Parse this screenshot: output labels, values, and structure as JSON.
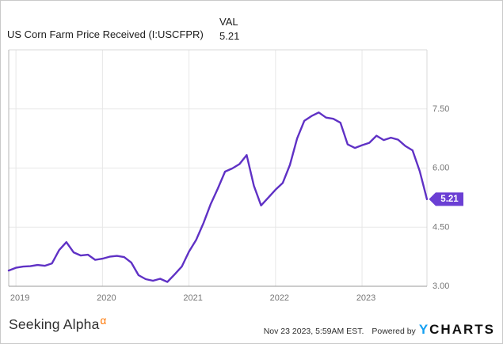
{
  "header": {
    "title": "US Corn Farm Price Received (I:USCFPR)",
    "value_label": "VAL",
    "value": "5.21"
  },
  "footer": {
    "brand": "Seeking Alpha",
    "brand_alpha": "α",
    "timestamp": "Nov 23 2023, 5:59AM EST.",
    "powered_by": "Powered by",
    "ycharts_y": "Y",
    "ycharts_rest": "CHARTS"
  },
  "colors": {
    "line": "#5f31c5",
    "badge": "#6b3fd4",
    "grid": "#e7e7e7",
    "axis_bottom": "#999999",
    "axis_left": "#b5b5b5",
    "frame_light": "#d8d8d8",
    "tick_text": "#757575",
    "alpha_orange": "#ff7500",
    "ycharts_blue": "#14a0f2"
  },
  "chart_data": {
    "type": "line",
    "title": "US Corn Farm Price Received (I:USCFPR)",
    "series_name": "US Corn Farm Price Received",
    "x": [
      "2018-12",
      "2019-01",
      "2019-02",
      "2019-03",
      "2019-04",
      "2019-05",
      "2019-06",
      "2019-07",
      "2019-08",
      "2019-09",
      "2019-10",
      "2019-11",
      "2019-12",
      "2020-01",
      "2020-02",
      "2020-03",
      "2020-04",
      "2020-05",
      "2020-06",
      "2020-07",
      "2020-08",
      "2020-09",
      "2020-10",
      "2020-11",
      "2020-12",
      "2021-01",
      "2021-02",
      "2021-03",
      "2021-04",
      "2021-05",
      "2021-06",
      "2021-07",
      "2021-08",
      "2021-09",
      "2021-10",
      "2021-11",
      "2021-12",
      "2022-01",
      "2022-02",
      "2022-03",
      "2022-04",
      "2022-05",
      "2022-06",
      "2022-07",
      "2022-08",
      "2022-09",
      "2022-10",
      "2022-11",
      "2022-12",
      "2023-01",
      "2023-02",
      "2023-03",
      "2023-04",
      "2023-05",
      "2023-06",
      "2023-07",
      "2023-08",
      "2023-09",
      "2023-10"
    ],
    "values": [
      3.4,
      3.47,
      3.5,
      3.51,
      3.54,
      3.52,
      3.58,
      3.92,
      4.12,
      3.86,
      3.78,
      3.8,
      3.67,
      3.7,
      3.75,
      3.77,
      3.74,
      3.6,
      3.28,
      3.18,
      3.14,
      3.19,
      3.11,
      3.3,
      3.5,
      3.88,
      4.18,
      4.6,
      5.08,
      5.48,
      5.91,
      5.99,
      6.1,
      6.33,
      5.55,
      5.05,
      5.25,
      5.45,
      5.62,
      6.08,
      6.75,
      7.2,
      7.32,
      7.41,
      7.28,
      7.25,
      7.15,
      6.6,
      6.51,
      6.58,
      6.64,
      6.82,
      6.71,
      6.77,
      6.72,
      6.56,
      6.45,
      5.92,
      5.21
    ],
    "last_value_label": "5.21",
    "ylim": [
      3.0,
      9.0
    ],
    "yticks": [
      3.0,
      4.5,
      6.0,
      7.5
    ],
    "ytick_labels": [
      "3.00",
      "4.50",
      "6.00",
      "7.50"
    ],
    "xtick_labels": [
      "2019",
      "2020",
      "2021",
      "2022",
      "2023"
    ],
    "grid": true,
    "legend": "none"
  }
}
